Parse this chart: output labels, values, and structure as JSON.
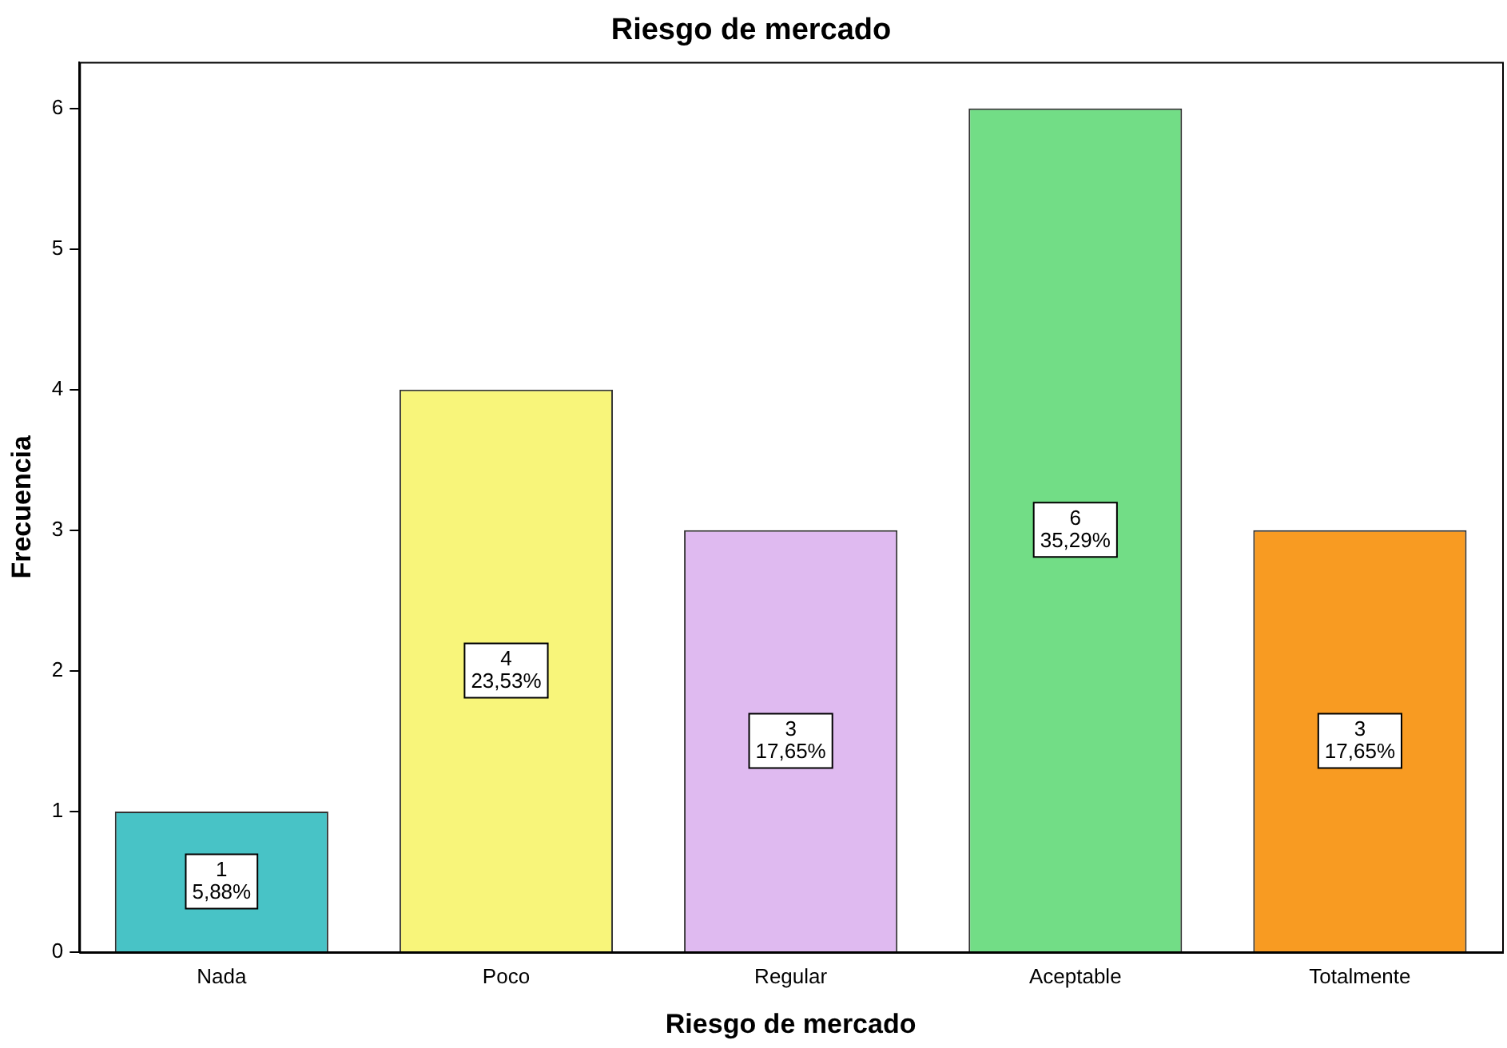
{
  "chart_data": {
    "type": "bar",
    "title": "Riesgo de mercado",
    "xlabel": "Riesgo de mercado",
    "ylabel": "Frecuencia",
    "categories": [
      "Nada",
      "Poco",
      "Regular",
      "Aceptable",
      "Totalmente"
    ],
    "values": [
      1,
      4,
      3,
      6,
      3
    ],
    "colors": [
      "#48c3c6",
      "#f8f57a",
      "#dfbaf0",
      "#72dd86",
      "#f89b22"
    ],
    "value_labels": [
      "1\n5,88%",
      "4\n23,53%",
      "3\n17,65%",
      "6\n35,29%",
      "3\n17,65%"
    ],
    "ylim": [
      0,
      6.33
    ],
    "yticks": [
      0,
      1,
      2,
      3,
      4,
      5,
      6
    ],
    "grid": false,
    "legend": false
  }
}
